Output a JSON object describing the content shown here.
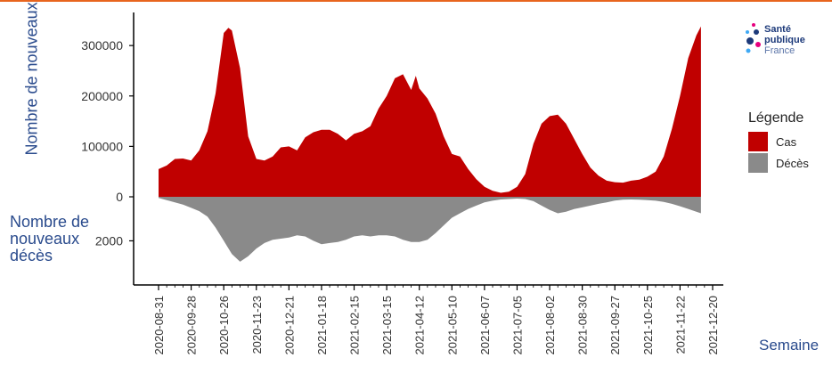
{
  "logo": {
    "line1": "Santé",
    "line2": "publique",
    "line3": "France",
    "dot_colors": [
      "#e6007e",
      "#1d3a7a",
      "#3fa9f5",
      "#1d3a7a",
      "#e6007e",
      "#3fa9f5"
    ]
  },
  "legend": {
    "title": "Légende",
    "items": [
      {
        "label": "Cas",
        "color": "#c00000"
      },
      {
        "label": "Décès",
        "color": "#8a8a8a"
      }
    ]
  },
  "axis_titles": {
    "cas": "Nombre de nouveaux cas",
    "deces_lines": [
      "Nombre de",
      "nouveaux",
      "décès"
    ],
    "x": "Semaine"
  },
  "colors": {
    "accent_rule": "#e8651e",
    "title_text": "#2a4b8d"
  },
  "chart_data": {
    "type": "area",
    "x_ticks": [
      "2020-08-31",
      "2020-09-28",
      "2020-10-26",
      "2020-11-23",
      "2020-12-21",
      "2021-01-18",
      "2021-02-15",
      "2021-03-15",
      "2021-04-12",
      "2021-05-10",
      "2021-06-07",
      "2021-07-05",
      "2021-08-02",
      "2021-08-30",
      "2021-09-27",
      "2021-10-25",
      "2021-11-22",
      "2021-12-20"
    ],
    "cas_ticks": [
      0,
      100000,
      200000,
      300000
    ],
    "deces_ticks": [
      2000
    ],
    "cas_ylim": [
      0,
      355000
    ],
    "deces_ylim": [
      0,
      3600
    ],
    "series": [
      {
        "name": "Cas",
        "points": [
          [
            "2020-08-31",
            55000
          ],
          [
            "2020-09-07",
            62000
          ],
          [
            "2020-09-14",
            75000
          ],
          [
            "2020-09-21",
            76000
          ],
          [
            "2020-09-28",
            72000
          ],
          [
            "2020-10-05",
            92000
          ],
          [
            "2020-10-12",
            130000
          ],
          [
            "2020-10-19",
            205000
          ],
          [
            "2020-10-26",
            325000
          ],
          [
            "2020-10-30",
            335000
          ],
          [
            "2020-11-02",
            330000
          ],
          [
            "2020-11-09",
            255000
          ],
          [
            "2020-11-16",
            120000
          ],
          [
            "2020-11-23",
            75000
          ],
          [
            "2020-11-30",
            72000
          ],
          [
            "2020-12-07",
            80000
          ],
          [
            "2020-12-14",
            98000
          ],
          [
            "2020-12-21",
            100000
          ],
          [
            "2020-12-28",
            92000
          ],
          [
            "2021-01-04",
            118000
          ],
          [
            "2021-01-11",
            128000
          ],
          [
            "2021-01-18",
            133000
          ],
          [
            "2021-01-25",
            133000
          ],
          [
            "2021-02-01",
            125000
          ],
          [
            "2021-02-08",
            112000
          ],
          [
            "2021-02-15",
            125000
          ],
          [
            "2021-02-22",
            130000
          ],
          [
            "2021-03-01",
            140000
          ],
          [
            "2021-03-08",
            175000
          ],
          [
            "2021-03-15",
            200000
          ],
          [
            "2021-03-22",
            235000
          ],
          [
            "2021-03-29",
            243000
          ],
          [
            "2021-04-05",
            212000
          ],
          [
            "2021-04-09",
            240000
          ],
          [
            "2021-04-12",
            215000
          ],
          [
            "2021-04-19",
            195000
          ],
          [
            "2021-04-26",
            165000
          ],
          [
            "2021-05-03",
            120000
          ],
          [
            "2021-05-10",
            85000
          ],
          [
            "2021-05-17",
            80000
          ],
          [
            "2021-05-24",
            55000
          ],
          [
            "2021-05-31",
            35000
          ],
          [
            "2021-06-07",
            20000
          ],
          [
            "2021-06-14",
            12000
          ],
          [
            "2021-06-21",
            8000
          ],
          [
            "2021-06-28",
            10000
          ],
          [
            "2021-07-05",
            20000
          ],
          [
            "2021-07-12",
            45000
          ],
          [
            "2021-07-19",
            105000
          ],
          [
            "2021-07-26",
            145000
          ],
          [
            "2021-08-02",
            160000
          ],
          [
            "2021-08-09",
            163000
          ],
          [
            "2021-08-16",
            145000
          ],
          [
            "2021-08-23",
            115000
          ],
          [
            "2021-08-30",
            85000
          ],
          [
            "2021-09-06",
            58000
          ],
          [
            "2021-09-13",
            42000
          ],
          [
            "2021-09-20",
            32000
          ],
          [
            "2021-09-27",
            29000
          ],
          [
            "2021-10-04",
            28000
          ],
          [
            "2021-10-11",
            32000
          ],
          [
            "2021-10-18",
            34000
          ],
          [
            "2021-10-25",
            40000
          ],
          [
            "2021-11-01",
            50000
          ],
          [
            "2021-11-08",
            80000
          ],
          [
            "2021-11-15",
            135000
          ],
          [
            "2021-11-22",
            200000
          ],
          [
            "2021-11-29",
            275000
          ],
          [
            "2021-12-06",
            320000
          ],
          [
            "2021-12-10",
            338000
          ]
        ]
      },
      {
        "name": "Décès",
        "points": [
          [
            "2020-08-31",
            50
          ],
          [
            "2020-09-07",
            150
          ],
          [
            "2020-09-14",
            250
          ],
          [
            "2020-09-21",
            350
          ],
          [
            "2020-09-28",
            500
          ],
          [
            "2020-10-05",
            650
          ],
          [
            "2020-10-12",
            900
          ],
          [
            "2020-10-19",
            1400
          ],
          [
            "2020-10-26",
            2000
          ],
          [
            "2020-11-02",
            2600
          ],
          [
            "2020-11-09",
            2950
          ],
          [
            "2020-11-16",
            2700
          ],
          [
            "2020-11-23",
            2350
          ],
          [
            "2020-11-30",
            2100
          ],
          [
            "2020-12-07",
            1950
          ],
          [
            "2020-12-14",
            1900
          ],
          [
            "2020-12-21",
            1850
          ],
          [
            "2020-12-28",
            1750
          ],
          [
            "2021-01-04",
            1800
          ],
          [
            "2021-01-11",
            2000
          ],
          [
            "2021-01-18",
            2150
          ],
          [
            "2021-01-25",
            2100
          ],
          [
            "2021-02-01",
            2050
          ],
          [
            "2021-02-08",
            1950
          ],
          [
            "2021-02-15",
            1800
          ],
          [
            "2021-02-22",
            1750
          ],
          [
            "2021-03-01",
            1800
          ],
          [
            "2021-03-08",
            1750
          ],
          [
            "2021-03-15",
            1750
          ],
          [
            "2021-03-22",
            1800
          ],
          [
            "2021-03-29",
            1950
          ],
          [
            "2021-04-05",
            2050
          ],
          [
            "2021-04-12",
            2050
          ],
          [
            "2021-04-19",
            1950
          ],
          [
            "2021-04-26",
            1650
          ],
          [
            "2021-05-03",
            1300
          ],
          [
            "2021-05-10",
            950
          ],
          [
            "2021-05-17",
            750
          ],
          [
            "2021-05-24",
            550
          ],
          [
            "2021-05-31",
            400
          ],
          [
            "2021-06-07",
            250
          ],
          [
            "2021-06-14",
            180
          ],
          [
            "2021-06-21",
            120
          ],
          [
            "2021-06-28",
            100
          ],
          [
            "2021-07-05",
            80
          ],
          [
            "2021-07-12",
            100
          ],
          [
            "2021-07-19",
            200
          ],
          [
            "2021-07-26",
            400
          ],
          [
            "2021-08-02",
            600
          ],
          [
            "2021-08-09",
            750
          ],
          [
            "2021-08-16",
            680
          ],
          [
            "2021-08-23",
            560
          ],
          [
            "2021-08-30",
            480
          ],
          [
            "2021-09-06",
            400
          ],
          [
            "2021-09-13",
            320
          ],
          [
            "2021-09-20",
            250
          ],
          [
            "2021-09-27",
            170
          ],
          [
            "2021-10-04",
            130
          ],
          [
            "2021-10-11",
            120
          ],
          [
            "2021-10-18",
            130
          ],
          [
            "2021-10-25",
            150
          ],
          [
            "2021-11-01",
            180
          ],
          [
            "2021-11-08",
            230
          ],
          [
            "2021-11-15",
            320
          ],
          [
            "2021-11-22",
            430
          ],
          [
            "2021-11-29",
            550
          ],
          [
            "2021-12-06",
            680
          ],
          [
            "2021-12-10",
            750
          ]
        ]
      }
    ],
    "grid": false,
    "legend_position": "right"
  }
}
